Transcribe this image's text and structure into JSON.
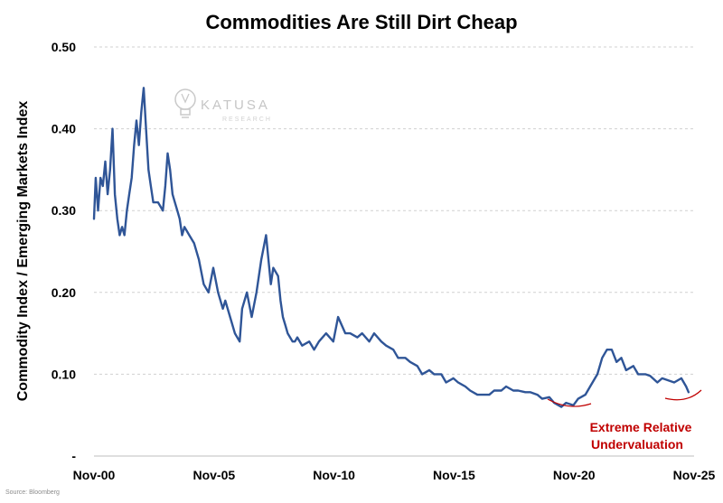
{
  "chart_data": {
    "type": "line",
    "title": "Commodities Are Still Dirt Cheap",
    "xlabel": "",
    "ylabel": "Commodity Index / Emerging Markets Index",
    "ylim": [
      0,
      0.5
    ],
    "y_ticks": [
      {
        "value": 0.5,
        "label": "0.50"
      },
      {
        "value": 0.4,
        "label": "0.40"
      },
      {
        "value": 0.3,
        "label": "0.30"
      },
      {
        "value": 0.2,
        "label": "0.20"
      },
      {
        "value": 0.1,
        "label": "0.10"
      },
      {
        "value": 0.0,
        "label": "-"
      }
    ],
    "x_ticks": [
      {
        "value": 2000.83,
        "label": "Nov-00"
      },
      {
        "value": 2005.83,
        "label": "Nov-05"
      },
      {
        "value": 2010.83,
        "label": "Nov-10"
      },
      {
        "value": 2015.83,
        "label": "Nov-15"
      },
      {
        "value": 2020.83,
        "label": "Nov-20"
      },
      {
        "value": 2025.83,
        "label": "Nov-25"
      }
    ],
    "xlim": [
      2000.83,
      2025.83
    ],
    "grid": true,
    "series": [
      {
        "name": "Commodity Index / Emerging Markets Index",
        "color": "#2f5597",
        "x": [
          2000.83,
          2000.9,
          2001.0,
          2001.1,
          2001.2,
          2001.3,
          2001.4,
          2001.5,
          2001.6,
          2001.7,
          2001.8,
          2001.9,
          2002.0,
          2002.1,
          2002.2,
          2002.3,
          2002.4,
          2002.5,
          2002.6,
          2002.7,
          2002.8,
          2002.9,
          2003.0,
          2003.1,
          2003.2,
          2003.3,
          2003.5,
          2003.7,
          2003.8,
          2003.9,
          2004.0,
          2004.1,
          2004.2,
          2004.3,
          2004.4,
          2004.5,
          2004.6,
          2004.8,
          2005.0,
          2005.2,
          2005.4,
          2005.6,
          2005.8,
          2006.0,
          2006.2,
          2006.3,
          2006.5,
          2006.7,
          2006.9,
          2007.0,
          2007.2,
          2007.4,
          2007.6,
          2007.8,
          2008.0,
          2008.2,
          2008.3,
          2008.5,
          2008.6,
          2008.7,
          2008.8,
          2008.9,
          2009.0,
          2009.1,
          2009.2,
          2009.3,
          2009.5,
          2009.8,
          2010.0,
          2010.2,
          2010.5,
          2010.8,
          2011.0,
          2011.3,
          2011.5,
          2011.8,
          2012.0,
          2012.3,
          2012.5,
          2012.8,
          2013.0,
          2013.3,
          2013.5,
          2013.8,
          2014.0,
          2014.3,
          2014.5,
          2014.8,
          2015.0,
          2015.3,
          2015.5,
          2015.8,
          2016.0,
          2016.3,
          2016.5,
          2016.8,
          2017.0,
          2017.3,
          2017.5,
          2017.8,
          2018.0,
          2018.3,
          2018.5,
          2018.8,
          2019.0,
          2019.3,
          2019.5,
          2019.8,
          2020.0,
          2020.3,
          2020.5,
          2020.8,
          2021.0,
          2021.3,
          2021.5,
          2021.8,
          2022.0,
          2022.2,
          2022.4,
          2022.6,
          2022.8,
          2023.0,
          2023.3,
          2023.5,
          2023.8,
          2024.0,
          2024.3,
          2024.5,
          2024.8,
          2025.0,
          2025.3,
          2025.5,
          2025.6
        ],
        "values": [
          0.29,
          0.34,
          0.3,
          0.34,
          0.33,
          0.36,
          0.32,
          0.35,
          0.4,
          0.32,
          0.29,
          0.27,
          0.28,
          0.27,
          0.3,
          0.32,
          0.34,
          0.38,
          0.41,
          0.38,
          0.42,
          0.45,
          0.4,
          0.35,
          0.33,
          0.31,
          0.31,
          0.3,
          0.33,
          0.37,
          0.35,
          0.32,
          0.31,
          0.3,
          0.29,
          0.27,
          0.28,
          0.27,
          0.26,
          0.24,
          0.21,
          0.2,
          0.23,
          0.2,
          0.18,
          0.19,
          0.17,
          0.15,
          0.14,
          0.18,
          0.2,
          0.17,
          0.2,
          0.24,
          0.27,
          0.21,
          0.23,
          0.22,
          0.19,
          0.17,
          0.16,
          0.15,
          0.145,
          0.14,
          0.14,
          0.145,
          0.135,
          0.14,
          0.13,
          0.14,
          0.15,
          0.14,
          0.17,
          0.15,
          0.15,
          0.145,
          0.15,
          0.14,
          0.15,
          0.14,
          0.135,
          0.13,
          0.12,
          0.12,
          0.115,
          0.11,
          0.1,
          0.105,
          0.1,
          0.1,
          0.09,
          0.095,
          0.09,
          0.085,
          0.08,
          0.075,
          0.075,
          0.075,
          0.08,
          0.08,
          0.085,
          0.08,
          0.08,
          0.078,
          0.078,
          0.075,
          0.07,
          0.072,
          0.065,
          0.06,
          0.065,
          0.062,
          0.07,
          0.075,
          0.085,
          0.1,
          0.12,
          0.13,
          0.13,
          0.115,
          0.12,
          0.105,
          0.11,
          0.1,
          0.1,
          0.098,
          0.09,
          0.095,
          0.092,
          0.09,
          0.095,
          0.085,
          0.078
        ]
      }
    ],
    "annotations": [
      {
        "id": "undervaluation",
        "lines": [
          "Extreme Relative",
          "Undervaluation"
        ],
        "color": "#c00000"
      }
    ],
    "watermark": {
      "brand": "KATUSA",
      "sub": "RESEARCH"
    },
    "source": "Source: Bloomberg"
  }
}
